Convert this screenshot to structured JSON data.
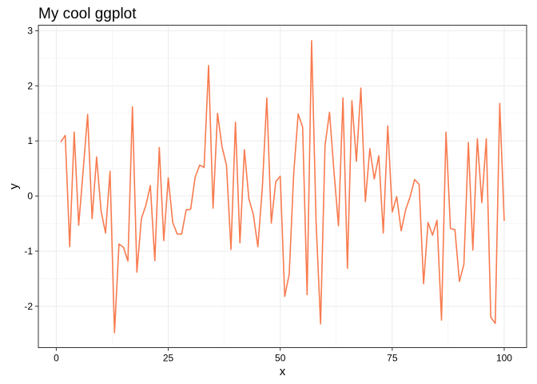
{
  "chart_data": {
    "type": "line",
    "title": "My cool ggplot",
    "xlabel": "x",
    "ylabel": "y",
    "xlim": [
      -4,
      105
    ],
    "ylim": [
      -2.75,
      3.1
    ],
    "x_ticks": [
      0,
      25,
      50,
      75,
      100
    ],
    "y_ticks": [
      -2,
      -1,
      0,
      1,
      2,
      3
    ],
    "grid": true,
    "line_color": "#F87B4F",
    "x": [
      1,
      2,
      3,
      4,
      5,
      6,
      7,
      8,
      9,
      10,
      11,
      12,
      13,
      14,
      15,
      16,
      17,
      18,
      19,
      20,
      21,
      22,
      23,
      24,
      25,
      26,
      27,
      28,
      29,
      30,
      31,
      32,
      33,
      34,
      35,
      36,
      37,
      38,
      39,
      40,
      41,
      42,
      43,
      44,
      45,
      46,
      47,
      48,
      49,
      50,
      51,
      52,
      53,
      54,
      55,
      56,
      57,
      58,
      59,
      60,
      61,
      62,
      63,
      64,
      65,
      66,
      67,
      68,
      69,
      70,
      71,
      72,
      73,
      74,
      75,
      76,
      77,
      78,
      79,
      80,
      81,
      82,
      83,
      84,
      85,
      86,
      87,
      88,
      89,
      90,
      91,
      92,
      93,
      94,
      95,
      96,
      97,
      98,
      99,
      100
    ],
    "y": [
      0.98,
      1.1,
      -0.92,
      1.16,
      -0.53,
      0.46,
      1.48,
      -0.41,
      0.71,
      -0.27,
      -0.67,
      0.45,
      -2.48,
      -0.87,
      -0.93,
      -1.18,
      1.62,
      -1.38,
      -0.41,
      -0.17,
      0.19,
      -1.17,
      0.88,
      -0.81,
      0.33,
      -0.48,
      -0.69,
      -0.69,
      -0.25,
      -0.24,
      0.34,
      0.56,
      0.52,
      2.37,
      -0.22,
      1.5,
      0.89,
      0.56,
      -0.97,
      1.34,
      -0.85,
      0.84,
      -0.05,
      -0.34,
      -0.92,
      0.15,
      1.78,
      -0.49,
      0.26,
      0.36,
      -1.82,
      -1.42,
      0.4,
      1.49,
      1.25,
      -1.79,
      2.82,
      -0.47,
      -2.32,
      0.92,
      1.52,
      0.44,
      -0.54,
      1.78,
      -1.31,
      1.73,
      0.63,
      1.96,
      -0.1,
      0.86,
      0.31,
      0.73,
      -0.67,
      1.27,
      -0.29,
      -0.01,
      -0.63,
      -0.25,
      -0.01,
      0.3,
      0.21,
      -1.59,
      -0.48,
      -0.71,
      -0.44,
      -2.25,
      1.16,
      -0.59,
      -0.61,
      -1.55,
      -1.24,
      0.97,
      -0.98,
      1.04,
      -0.12,
      1.04,
      -2.2,
      -2.31,
      1.68,
      -0.45
    ]
  }
}
